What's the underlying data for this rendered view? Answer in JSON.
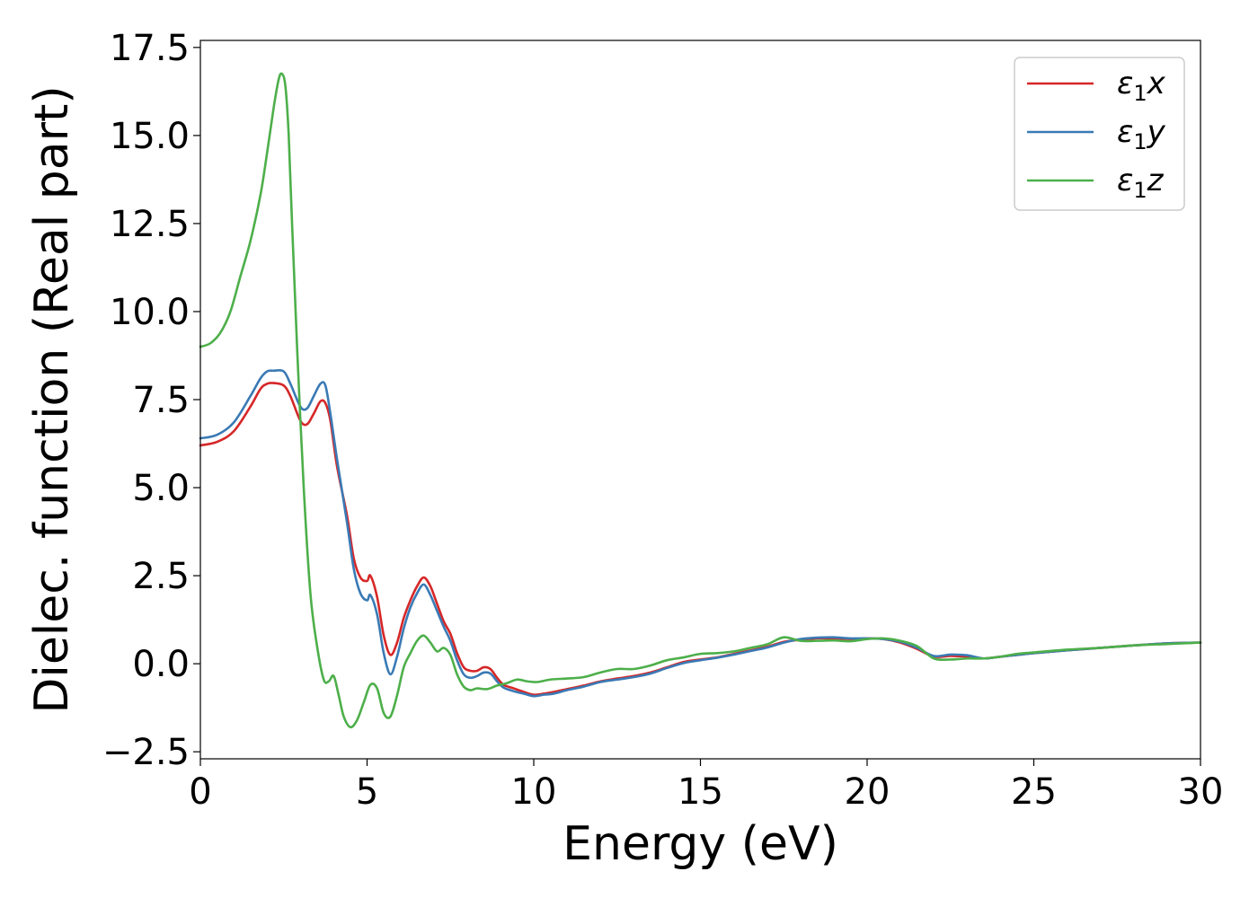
{
  "chart_data": {
    "type": "line",
    "title": "",
    "xlabel": "Energy (eV)",
    "ylabel": "Dielec. function (Real part)",
    "xlim": [
      0,
      30
    ],
    "ylim": [
      -2.7,
      17.7
    ],
    "xticks": [
      0,
      5,
      10,
      15,
      20,
      25,
      30
    ],
    "xtick_labels": [
      "0",
      "5",
      "10",
      "15",
      "20",
      "25",
      "30"
    ],
    "yticks": [
      -2.5,
      0.0,
      2.5,
      5.0,
      7.5,
      10.0,
      12.5,
      15.0,
      17.5
    ],
    "ytick_labels": [
      "−2.5",
      "0.0",
      "2.5",
      "5.0",
      "7.5",
      "10.0",
      "12.5",
      "15.0",
      "17.5"
    ],
    "grid": false,
    "legend_position": "top-right",
    "series": [
      {
        "name": "ε₁x",
        "legend_main": "ε",
        "legend_sub": "1",
        "legend_tail": "x",
        "color": "#d62728",
        "x": [
          0,
          0.5,
          1,
          1.5,
          1.8,
          2.0,
          2.2,
          2.5,
          2.7,
          3.0,
          3.2,
          3.4,
          3.6,
          3.75,
          3.9,
          4.1,
          4.4,
          4.6,
          4.8,
          5.0,
          5.1,
          5.3,
          5.5,
          5.7,
          5.9,
          6.1,
          6.3,
          6.5,
          6.7,
          6.9,
          7.1,
          7.3,
          7.5,
          7.7,
          7.9,
          8.1,
          8.3,
          8.5,
          8.7,
          8.9,
          9.1,
          9.4,
          9.7,
          10.0,
          10.3,
          10.6,
          11.0,
          11.5,
          12.0,
          12.5,
          13.0,
          13.5,
          14.0,
          14.5,
          15.0,
          15.5,
          16.0,
          16.5,
          17.0,
          17.5,
          18.0,
          18.5,
          19.0,
          19.5,
          20.0,
          20.5,
          21.0,
          21.5,
          22.0,
          22.5,
          23.0,
          23.5,
          24.0,
          24.5,
          25.0,
          26.0,
          27.0,
          28.0,
          29.0,
          30.0
        ],
        "values": [
          6.2,
          6.3,
          6.6,
          7.3,
          7.8,
          7.95,
          7.97,
          7.9,
          7.6,
          6.9,
          6.8,
          7.1,
          7.45,
          7.4,
          6.9,
          5.6,
          4.2,
          3.0,
          2.45,
          2.35,
          2.5,
          1.9,
          0.8,
          0.25,
          0.6,
          1.3,
          1.8,
          2.2,
          2.45,
          2.2,
          1.7,
          1.2,
          0.85,
          0.3,
          -0.1,
          -0.2,
          -0.2,
          -0.1,
          -0.15,
          -0.4,
          -0.6,
          -0.7,
          -0.8,
          -0.88,
          -0.85,
          -0.8,
          -0.72,
          -0.62,
          -0.5,
          -0.42,
          -0.35,
          -0.25,
          -0.1,
          0.05,
          0.12,
          0.18,
          0.28,
          0.38,
          0.48,
          0.62,
          0.68,
          0.72,
          0.72,
          0.7,
          0.72,
          0.7,
          0.6,
          0.42,
          0.2,
          0.22,
          0.2,
          0.15,
          0.2,
          0.25,
          0.3,
          0.38,
          0.45,
          0.52,
          0.58,
          0.6
        ]
      },
      {
        "name": "ε₁y",
        "legend_main": "ε",
        "legend_sub": "1",
        "legend_tail": "y",
        "color": "#3a7ab5",
        "x": [
          0,
          0.5,
          1,
          1.5,
          1.8,
          2.0,
          2.2,
          2.5,
          2.7,
          3.0,
          3.2,
          3.4,
          3.6,
          3.75,
          3.9,
          4.1,
          4.4,
          4.6,
          4.8,
          5.0,
          5.1,
          5.3,
          5.5,
          5.7,
          5.9,
          6.1,
          6.3,
          6.5,
          6.7,
          6.9,
          7.1,
          7.3,
          7.5,
          7.7,
          7.9,
          8.1,
          8.3,
          8.5,
          8.7,
          8.9,
          9.1,
          9.4,
          9.7,
          10.0,
          10.3,
          10.6,
          11.0,
          11.5,
          12.0,
          12.5,
          13.0,
          13.5,
          14.0,
          14.5,
          15.0,
          15.5,
          16.0,
          16.5,
          17.0,
          17.5,
          18.0,
          18.5,
          19.0,
          19.5,
          20.0,
          20.5,
          21.0,
          21.5,
          22.0,
          22.5,
          23.0,
          23.5,
          24.0,
          24.5,
          25.0,
          26.0,
          27.0,
          28.0,
          29.0,
          30.0
        ],
        "values": [
          6.4,
          6.5,
          6.85,
          7.6,
          8.1,
          8.3,
          8.32,
          8.3,
          7.95,
          7.3,
          7.25,
          7.6,
          7.95,
          7.9,
          7.1,
          5.8,
          4.0,
          2.7,
          2.0,
          1.8,
          1.95,
          1.4,
          0.3,
          -0.3,
          0.2,
          1.0,
          1.6,
          2.0,
          2.25,
          1.95,
          1.5,
          1.05,
          0.65,
          0.1,
          -0.3,
          -0.4,
          -0.35,
          -0.25,
          -0.28,
          -0.5,
          -0.68,
          -0.78,
          -0.85,
          -0.92,
          -0.88,
          -0.85,
          -0.75,
          -0.65,
          -0.52,
          -0.45,
          -0.38,
          -0.28,
          -0.12,
          0.02,
          0.1,
          0.17,
          0.26,
          0.36,
          0.46,
          0.6,
          0.7,
          0.74,
          0.75,
          0.72,
          0.72,
          0.7,
          0.62,
          0.45,
          0.22,
          0.26,
          0.24,
          0.15,
          0.2,
          0.25,
          0.3,
          0.38,
          0.45,
          0.52,
          0.58,
          0.6
        ]
      },
      {
        "name": "ε₁z",
        "legend_main": "ε",
        "legend_sub": "1",
        "legend_tail": "z",
        "color": "#4daf4a",
        "x": [
          0,
          0.3,
          0.6,
          0.9,
          1.2,
          1.5,
          1.8,
          2.0,
          2.2,
          2.35,
          2.45,
          2.55,
          2.65,
          2.75,
          2.9,
          3.1,
          3.3,
          3.5,
          3.7,
          3.85,
          4.0,
          4.15,
          4.3,
          4.5,
          4.7,
          4.9,
          5.1,
          5.3,
          5.5,
          5.7,
          5.9,
          6.1,
          6.3,
          6.5,
          6.7,
          6.9,
          7.1,
          7.3,
          7.5,
          7.7,
          7.9,
          8.1,
          8.3,
          8.6,
          8.9,
          9.2,
          9.5,
          9.8,
          10.1,
          10.5,
          11.0,
          11.5,
          12.0,
          12.5,
          13.0,
          13.5,
          14.0,
          14.5,
          15.0,
          15.5,
          16.0,
          16.5,
          17.0,
          17.5,
          18.0,
          18.5,
          19.0,
          19.5,
          20.0,
          20.5,
          21.0,
          21.5,
          22.0,
          22.5,
          23.0,
          23.5,
          24.0,
          24.5,
          25.0,
          26.0,
          27.0,
          28.0,
          29.0,
          30.0
        ],
        "values": [
          9.0,
          9.1,
          9.4,
          10.0,
          11.0,
          12.0,
          13.3,
          14.5,
          15.8,
          16.6,
          16.75,
          16.4,
          15.0,
          12.5,
          9.0,
          5.0,
          2.0,
          0.5,
          -0.45,
          -0.5,
          -0.35,
          -0.9,
          -1.5,
          -1.8,
          -1.6,
          -1.1,
          -0.6,
          -0.7,
          -1.4,
          -1.5,
          -0.9,
          -0.1,
          0.3,
          0.65,
          0.8,
          0.6,
          0.35,
          0.45,
          0.25,
          -0.3,
          -0.65,
          -0.75,
          -0.7,
          -0.72,
          -0.62,
          -0.55,
          -0.45,
          -0.5,
          -0.52,
          -0.45,
          -0.42,
          -0.38,
          -0.25,
          -0.15,
          -0.15,
          -0.05,
          0.1,
          0.18,
          0.28,
          0.3,
          0.35,
          0.45,
          0.55,
          0.75,
          0.65,
          0.65,
          0.66,
          0.64,
          0.7,
          0.72,
          0.65,
          0.5,
          0.15,
          0.12,
          0.15,
          0.15,
          0.2,
          0.28,
          0.32,
          0.4,
          0.45,
          0.52,
          0.56,
          0.6
        ]
      }
    ]
  }
}
